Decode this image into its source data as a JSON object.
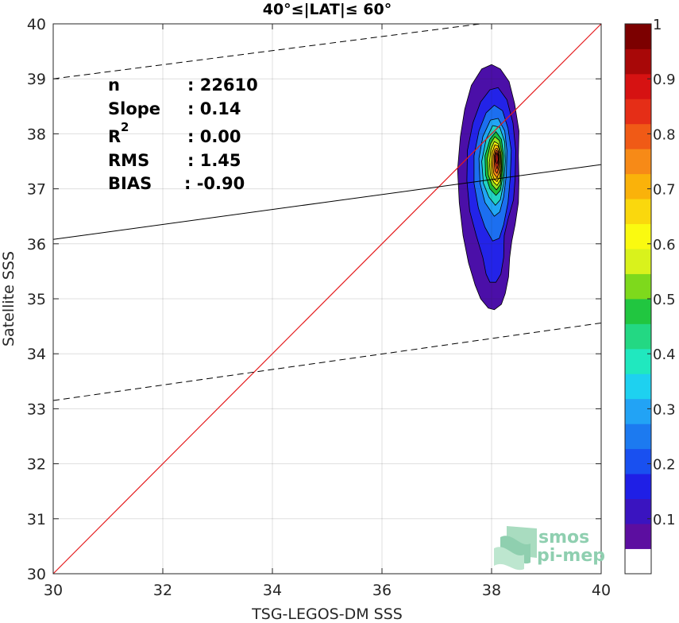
{
  "chart_data": {
    "type": "contour-scatter",
    "title": "40°≤|LAT|≤ 60°",
    "xlabel": "TSG-LEGOS-DM SSS",
    "ylabel": "Satellite SSS",
    "xlim": [
      30,
      40
    ],
    "ylim": [
      30,
      40
    ],
    "xticks": [
      "30",
      "32",
      "34",
      "36",
      "38",
      "40"
    ],
    "yticks": [
      "30",
      "31",
      "32",
      "33",
      "34",
      "35",
      "36",
      "37",
      "38",
      "39",
      "40"
    ],
    "grid": true,
    "stats": {
      "n": {
        "label": "n",
        "value": ": 22610"
      },
      "slope": {
        "label": "Slope",
        "value": ": 0.14"
      },
      "r2": {
        "label": "R",
        "sup": "2",
        "value": ": 0.00"
      },
      "rms": {
        "label": "RMS",
        "value": ": 1.45"
      },
      "bias": {
        "label": "BIAS",
        "value": ": -0.90"
      }
    },
    "lines": {
      "one_to_one": {
        "points": [
          [
            30,
            30
          ],
          [
            40,
            40
          ]
        ],
        "color": "#e41a1c"
      },
      "regression": {
        "points": [
          [
            30,
            36.08
          ],
          [
            40,
            37.44
          ]
        ],
        "color": "#000000"
      },
      "upper_bound": {
        "points": [
          [
            30,
            39.0
          ],
          [
            37.8,
            40.0
          ]
        ],
        "style": "dashed"
      },
      "lower_bound": {
        "points": [
          [
            30,
            33.15
          ],
          [
            40,
            34.56
          ]
        ],
        "style": "dashed"
      }
    },
    "density": {
      "peak": [
        38.1,
        37.6
      ],
      "levels": [
        {
          "level": 0.05,
          "color": "#4b0fa8",
          "pts": [
            [
              37.94,
              34.83
            ],
            [
              38.05,
              34.8
            ],
            [
              38.18,
              34.9
            ],
            [
              38.25,
              35.1
            ],
            [
              38.31,
              35.4
            ],
            [
              38.33,
              35.75
            ],
            [
              38.37,
              36.05
            ],
            [
              38.43,
              36.35
            ],
            [
              38.49,
              36.75
            ],
            [
              38.5,
              37.15
            ],
            [
              38.49,
              37.6
            ],
            [
              38.5,
              38.05
            ],
            [
              38.42,
              38.55
            ],
            [
              38.32,
              38.95
            ],
            [
              38.16,
              39.18
            ],
            [
              38.0,
              39.26
            ],
            [
              37.82,
              39.18
            ],
            [
              37.63,
              38.88
            ],
            [
              37.51,
              38.45
            ],
            [
              37.43,
              37.95
            ],
            [
              37.38,
              37.35
            ],
            [
              37.41,
              36.75
            ],
            [
              37.48,
              36.15
            ],
            [
              37.58,
              35.65
            ],
            [
              37.7,
              35.25
            ],
            [
              37.8,
              35.0
            ]
          ]
        },
        {
          "level": 0.1,
          "color": "#2323e8",
          "pts": [
            [
              37.97,
              35.3
            ],
            [
              38.08,
              35.3
            ],
            [
              38.17,
              35.45
            ],
            [
              38.22,
              35.75
            ],
            [
              38.23,
              36.15
            ],
            [
              38.3,
              36.45
            ],
            [
              38.4,
              36.8
            ],
            [
              38.43,
              37.2
            ],
            [
              38.44,
              37.7
            ],
            [
              38.39,
              38.2
            ],
            [
              38.28,
              38.62
            ],
            [
              38.12,
              38.84
            ],
            [
              37.97,
              38.8
            ],
            [
              37.8,
              38.58
            ],
            [
              37.66,
              38.2
            ],
            [
              37.56,
              37.7
            ],
            [
              37.55,
              37.15
            ],
            [
              37.6,
              36.6
            ],
            [
              37.72,
              36.15
            ],
            [
              37.84,
              35.75
            ],
            [
              37.9,
              35.45
            ]
          ]
        },
        {
          "level": 0.2,
          "color": "#1c6ff0",
          "pts": [
            [
              38.02,
              36.05
            ],
            [
              38.14,
              36.1
            ],
            [
              38.22,
              36.35
            ],
            [
              38.3,
              36.75
            ],
            [
              38.34,
              37.2
            ],
            [
              38.36,
              37.7
            ],
            [
              38.3,
              38.1
            ],
            [
              38.2,
              38.42
            ],
            [
              38.05,
              38.52
            ],
            [
              37.9,
              38.38
            ],
            [
              37.77,
              38.05
            ],
            [
              37.68,
              37.6
            ],
            [
              37.68,
              37.1
            ],
            [
              37.76,
              36.65
            ],
            [
              37.88,
              36.3
            ]
          ]
        },
        {
          "level": 0.3,
          "color": "#21a6f5",
          "pts": [
            [
              38.05,
              36.5
            ],
            [
              38.15,
              36.58
            ],
            [
              38.22,
              36.85
            ],
            [
              38.27,
              37.25
            ],
            [
              38.28,
              37.7
            ],
            [
              38.24,
              38.05
            ],
            [
              38.12,
              38.28
            ],
            [
              37.98,
              38.25
            ],
            [
              37.84,
              37.95
            ],
            [
              37.77,
              37.55
            ],
            [
              37.79,
              37.1
            ],
            [
              37.88,
              36.75
            ]
          ]
        },
        {
          "level": 0.4,
          "color": "#22d3c2",
          "pts": [
            [
              38.07,
              36.7
            ],
            [
              38.16,
              36.8
            ],
            [
              38.22,
              37.1
            ],
            [
              38.25,
              37.5
            ],
            [
              38.24,
              37.85
            ],
            [
              38.15,
              38.12
            ],
            [
              38.02,
              38.15
            ],
            [
              37.9,
              37.9
            ],
            [
              37.82,
              37.5
            ],
            [
              37.85,
              37.1
            ],
            [
              37.95,
              36.85
            ]
          ]
        },
        {
          "level": 0.5,
          "color": "#1bc03a",
          "pts": [
            [
              38.08,
              36.88
            ],
            [
              38.16,
              36.97
            ],
            [
              38.21,
              37.25
            ],
            [
              38.22,
              37.6
            ],
            [
              38.18,
              37.9
            ],
            [
              38.08,
              38.04
            ],
            [
              37.97,
              37.9
            ],
            [
              37.88,
              37.6
            ],
            [
              37.89,
              37.25
            ],
            [
              37.97,
              37.0
            ]
          ]
        },
        {
          "level": 0.6,
          "color": "#9be21d",
          "pts": [
            [
              38.09,
              36.98
            ],
            [
              38.16,
              37.08
            ],
            [
              38.19,
              37.35
            ],
            [
              38.19,
              37.65
            ],
            [
              38.14,
              37.88
            ],
            [
              38.06,
              37.95
            ],
            [
              37.98,
              37.82
            ],
            [
              37.92,
              37.55
            ],
            [
              37.94,
              37.25
            ],
            [
              38.01,
              37.07
            ]
          ]
        },
        {
          "level": 0.65,
          "color": "#f8f60e",
          "pts": [
            [
              38.1,
              37.06
            ],
            [
              38.16,
              37.16
            ],
            [
              38.18,
              37.4
            ],
            [
              38.17,
              37.65
            ],
            [
              38.12,
              37.82
            ],
            [
              38.05,
              37.86
            ],
            [
              37.99,
              37.72
            ],
            [
              37.96,
              37.48
            ],
            [
              37.98,
              37.25
            ],
            [
              38.04,
              37.12
            ]
          ]
        },
        {
          "level": 0.7,
          "color": "#fac20a",
          "pts": [
            [
              38.1,
              37.13
            ],
            [
              38.15,
              37.22
            ],
            [
              38.17,
              37.42
            ],
            [
              38.16,
              37.64
            ],
            [
              38.12,
              37.78
            ],
            [
              38.06,
              37.8
            ],
            [
              38.01,
              37.66
            ],
            [
              37.99,
              37.45
            ],
            [
              38.01,
              37.27
            ],
            [
              38.05,
              37.17
            ]
          ]
        },
        {
          "level": 0.8,
          "color": "#f6861a",
          "pts": [
            [
              38.1,
              37.2
            ],
            [
              38.14,
              37.3
            ],
            [
              38.15,
              37.48
            ],
            [
              38.14,
              37.66
            ],
            [
              38.1,
              37.74
            ],
            [
              38.06,
              37.72
            ],
            [
              38.03,
              37.6
            ],
            [
              38.02,
              37.42
            ],
            [
              38.04,
              37.28
            ]
          ]
        },
        {
          "level": 0.85,
          "color": "#ef5a18",
          "pts": [
            [
              38.1,
              37.28
            ],
            [
              38.13,
              37.38
            ],
            [
              38.14,
              37.55
            ],
            [
              38.12,
              37.68
            ],
            [
              38.08,
              37.7
            ],
            [
              38.05,
              37.6
            ],
            [
              38.05,
              37.42
            ],
            [
              38.07,
              37.32
            ]
          ]
        },
        {
          "level": 0.9,
          "color": "#e8301a",
          "pts": [
            [
              38.1,
              37.36
            ],
            [
              38.12,
              37.45
            ],
            [
              38.13,
              37.58
            ],
            [
              38.11,
              37.66
            ],
            [
              38.08,
              37.66
            ],
            [
              38.06,
              37.57
            ],
            [
              38.07,
              37.45
            ]
          ]
        },
        {
          "level": 0.95,
          "color": "#c41a14",
          "pts": [
            [
              38.1,
              37.45
            ],
            [
              38.12,
              37.53
            ],
            [
              38.11,
              37.63
            ],
            [
              38.09,
              37.64
            ],
            [
              38.08,
              37.56
            ],
            [
              38.08,
              37.49
            ]
          ]
        }
      ]
    },
    "colorbar": {
      "ticks": [
        "0.1",
        "0.2",
        "0.3",
        "0.4",
        "0.5",
        "0.6",
        "0.7",
        "0.8",
        "0.9",
        "1"
      ],
      "colors": [
        "#ffffff",
        "#5c0ea0",
        "#3a14c0",
        "#1f1fe6",
        "#1950f0",
        "#1c7af0",
        "#22a3f5",
        "#1ed1f0",
        "#20e8bf",
        "#23d883",
        "#21c640",
        "#7ed91c",
        "#d9f21c",
        "#fafa10",
        "#fad80d",
        "#fab20a",
        "#f78a17",
        "#f05a16",
        "#e52e17",
        "#d61212",
        "#a80808",
        "#7c0000"
      ]
    },
    "logo_text": [
      "smos",
      "pi-mep"
    ]
  }
}
